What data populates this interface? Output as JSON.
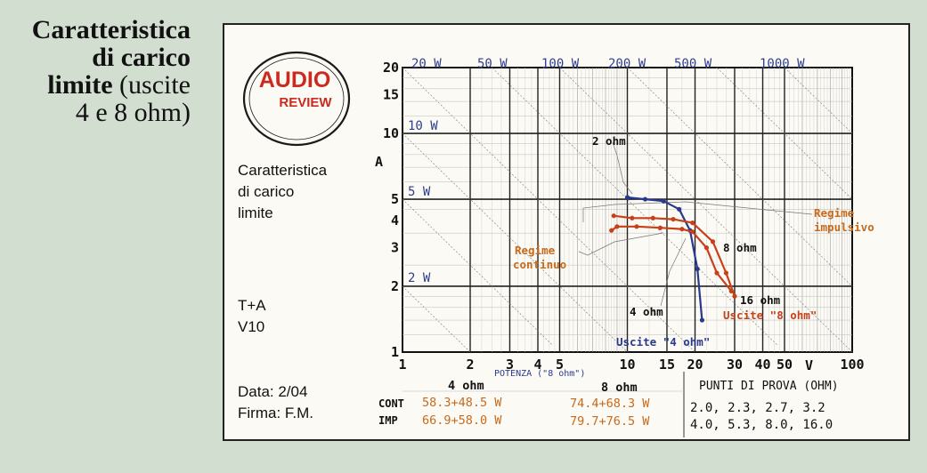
{
  "caption": {
    "line1": "Caratteristica",
    "line2": "di carico",
    "line3_bold": "limite",
    "line3_rest": "(uscite",
    "line4": "4 e 8 ohm)"
  },
  "logo": {
    "word1": "AUDIO",
    "word2": "REVIEW"
  },
  "side": {
    "title1": "Caratteristica",
    "title2": "di carico",
    "title3": "limite",
    "brand": "T+A",
    "model": "V10",
    "data": "Data: 2/04",
    "firma": "Firma: F.M."
  },
  "colors": {
    "blue": "#283a8f",
    "red": "#c8401a",
    "orange": "#c86a1c",
    "background": "#d2dfd0"
  },
  "chart_data": {
    "type": "line",
    "x_scale": "log",
    "y_scale": "log",
    "xlim": [
      1,
      100
    ],
    "ylim": [
      1,
      20
    ],
    "xticks": [
      1,
      2,
      3,
      4,
      5,
      10,
      15,
      20,
      30,
      40,
      50,
      100
    ],
    "yticks": [
      1,
      2,
      3,
      4,
      5,
      10,
      15,
      20
    ],
    "xlabel_unit": "V",
    "ylabel_unit": "A",
    "subxlabel": "POTENZA (\"8 ohm\")",
    "power_lines": [
      {
        "label": "2 W",
        "watts": 2
      },
      {
        "label": "5 W",
        "watts": 5
      },
      {
        "label": "10 W",
        "watts": 10
      },
      {
        "label": "20 W",
        "watts": 20
      },
      {
        "label": "50 W",
        "watts": 50
      },
      {
        "label": "100 W",
        "watts": 100
      },
      {
        "label": "200 W",
        "watts": 200
      },
      {
        "label": "500 W",
        "watts": 500
      },
      {
        "label": "1000 W",
        "watts": 1000
      }
    ],
    "series": [
      {
        "name": "Uscite \"4 ohm\"",
        "color": "#283a8f",
        "points": [
          [
            10.0,
            5.1
          ],
          [
            12.0,
            5.0
          ],
          [
            14.5,
            4.9
          ],
          [
            17.0,
            4.5
          ],
          [
            19.0,
            3.6
          ],
          [
            20.5,
            2.4
          ],
          [
            21.5,
            1.4
          ]
        ]
      },
      {
        "name": "Uscite \"8 ohm\" (impulsivo)",
        "color": "#c8401a",
        "points": [
          [
            8.7,
            4.2
          ],
          [
            10.5,
            4.1
          ],
          [
            13.0,
            4.1
          ],
          [
            16.0,
            4.05
          ],
          [
            19.5,
            3.9
          ],
          [
            24.0,
            3.2
          ],
          [
            27.5,
            2.3
          ],
          [
            30.0,
            1.8
          ]
        ]
      },
      {
        "name": "Uscite \"8 ohm\" (continuo)",
        "color": "#c8401a",
        "points": [
          [
            8.5,
            3.6
          ],
          [
            9.0,
            3.75
          ],
          [
            11.0,
            3.75
          ],
          [
            14.0,
            3.7
          ],
          [
            17.5,
            3.65
          ],
          [
            19.5,
            3.55
          ],
          [
            22.5,
            3.0
          ],
          [
            25.0,
            2.3
          ],
          [
            29.0,
            1.9
          ]
        ]
      }
    ],
    "annotations": {
      "ohm2": "2 ohm",
      "ohm4": "4 ohm",
      "ohm8": "8 ohm",
      "ohm16": "16 ohm",
      "regime_imp_1": "Regime",
      "regime_imp_2": "impulsivo",
      "regime_cont_1": "Regime",
      "regime_cont_2": "continuo",
      "uscite4": "Uscite \"4 ohm\"",
      "uscite8": "Uscite \"8 ohm\""
    }
  },
  "table": {
    "col4": "4 ohm",
    "col8": "8 ohm",
    "cont_label": "CONT",
    "imp_label": "IMP",
    "cont_4": "58.3+48.5 W",
    "cont_8": "74.4+68.3 W",
    "imp_4": "66.9+58.0 W",
    "imp_8": "79.7+76.5 W",
    "punti_title": "PUNTI DI PROVA (OHM)",
    "punti_row1": "2.0, 2.3, 2.7, 3.2",
    "punti_row2": "4.0, 5.3, 8.0, 16.0"
  }
}
